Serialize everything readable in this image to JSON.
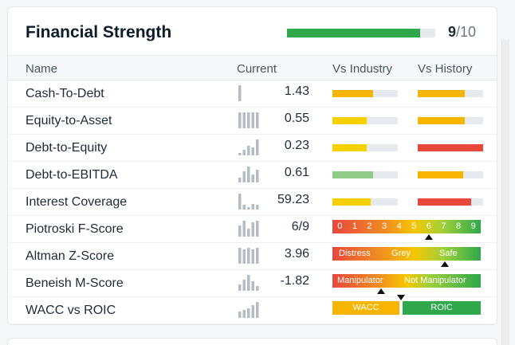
{
  "title": "Financial Strength",
  "score": {
    "value": "9",
    "suffix": "/10",
    "fraction": 0.9,
    "color": "#2ea84b"
  },
  "columns": {
    "name": "Name",
    "current": "Current",
    "vs_industry": "Vs Industry",
    "vs_history": "Vs History"
  },
  "rows": [
    {
      "name": "Cash-To-Debt",
      "value": "1.43",
      "industry": {
        "fill": 0.62,
        "color": "#f7b500"
      },
      "history": {
        "fill": 0.72,
        "color": "#f7b500"
      },
      "spark": [
        1,
        0,
        0,
        0,
        0
      ]
    },
    {
      "name": "Equity-to-Asset",
      "value": "0.55",
      "industry": {
        "fill": 0.52,
        "color": "#f7d000"
      },
      "history": {
        "fill": 0.72,
        "color": "#f7b500"
      },
      "spark": [
        1,
        1,
        1,
        1,
        1
      ]
    },
    {
      "name": "Debt-to-Equity",
      "value": "0.23",
      "industry": {
        "fill": 0.53,
        "color": "#f7d000"
      },
      "history": {
        "fill": 1.0,
        "color": "#e8473c"
      },
      "spark": [
        0.15,
        0.35,
        0.6,
        0.5,
        1
      ]
    },
    {
      "name": "Debt-to-EBITDA",
      "value": "0.61",
      "industry": {
        "fill": 0.62,
        "color": "#8fcc85"
      },
      "history": {
        "fill": 0.7,
        "color": "#f7b500"
      },
      "spark": [
        0.3,
        0.7,
        1,
        0.5,
        0.8
      ]
    },
    {
      "name": "Interest Coverage",
      "value": "59.23",
      "industry": {
        "fill": 0.58,
        "color": "#f7d000"
      },
      "history": {
        "fill": 0.82,
        "color": "#e8473c"
      },
      "spark": [
        1,
        0.3,
        0.15,
        0.35,
        0.3
      ]
    },
    {
      "name": "Piotroski F-Score",
      "value": "6/9",
      "scale": [
        "0",
        "1",
        "2",
        "3",
        "4",
        "5",
        "6",
        "7",
        "8",
        "9"
      ],
      "marker": 6,
      "spark": [
        0.7,
        1,
        0.5,
        0.9,
        1
      ]
    },
    {
      "name": "Altman Z-Score",
      "value": "3.96",
      "zones": [
        "Distress",
        "Grey",
        "Safe"
      ],
      "marker_fraction": 0.76,
      "spark": [
        1,
        0.9,
        1,
        0.9,
        1
      ]
    },
    {
      "name": "Beneish M-Score",
      "value": "-1.82",
      "zones": [
        "Manipulator",
        "Not Manipulator"
      ],
      "marker_fraction": 0.33,
      "spark": [
        0.4,
        0.7,
        1,
        0.6,
        0.3
      ]
    },
    {
      "name": "WACC vs ROIC",
      "value": "",
      "wacc": {
        "label": "WACC",
        "color": "#f7b500"
      },
      "roic": {
        "label": "ROIC",
        "color": "#2ea84b"
      },
      "marker_fraction": 0.46,
      "spark": [
        0.4,
        0.5,
        0.6,
        0.8,
        1
      ]
    }
  ]
}
